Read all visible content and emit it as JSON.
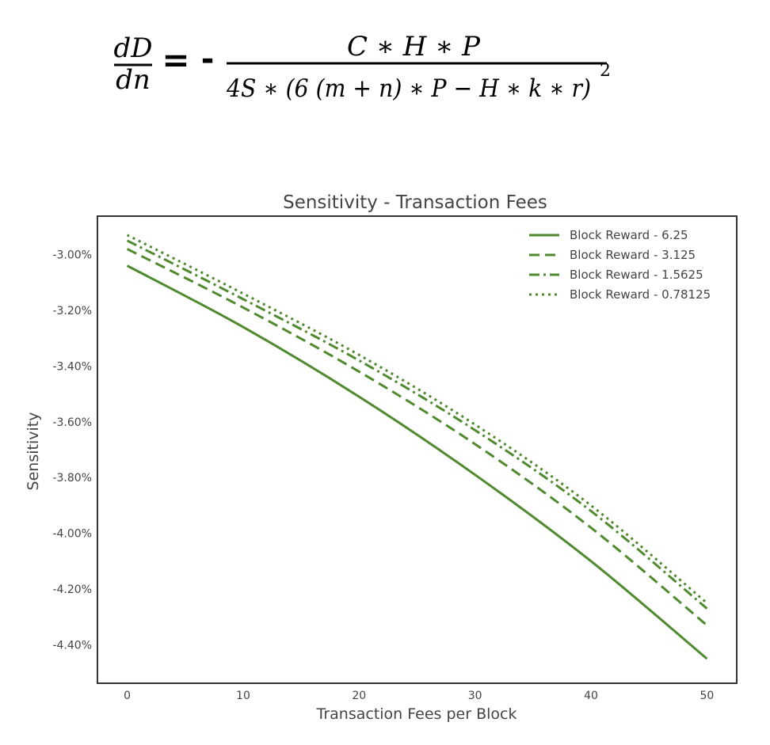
{
  "formula": {
    "lhs_num": "dD",
    "lhs_den": "dn",
    "equals": "=",
    "sign": "-",
    "rhs_num": "C ∗ H ∗ P",
    "rhs_den": "4S ∗ (6 (m + n) ∗ P − H ∗ k ∗ r)",
    "rhs_den_exp": "2"
  },
  "colors": {
    "series": "#4f8a2f",
    "axis": "#333333",
    "text": "#444444"
  },
  "chart_data": {
    "type": "line",
    "title": "Sensitivity - Transaction Fees",
    "xlabel": "Transaction Fees per Block",
    "ylabel": "Sensitivity",
    "xlim": [
      -2.5,
      52.5
    ],
    "ylim": [
      -4.535,
      -2.865
    ],
    "xticks": [
      0,
      10,
      20,
      30,
      40,
      50
    ],
    "xtick_labels": [
      "0",
      "10",
      "20",
      "30",
      "40",
      "50"
    ],
    "yticks": [
      -3.0,
      -3.2,
      -3.4,
      -3.6,
      -3.8,
      -4.0,
      -4.2,
      -4.4
    ],
    "ytick_labels": [
      "-3.00%",
      "-3.20%",
      "-3.40%",
      "-3.60%",
      "-3.80%",
      "-4.00%",
      "-4.20%",
      "-4.40%"
    ],
    "grid": false,
    "legend_position": "top-right",
    "x": [
      0,
      10,
      20,
      30,
      40,
      50
    ],
    "series": [
      {
        "name": "Block Reward - 6.25",
        "style": "solid",
        "values": [
          -3.04,
          -3.26,
          -3.51,
          -3.79,
          -4.1,
          -4.45
        ]
      },
      {
        "name": "Block Reward - 3.125",
        "style": "dashed",
        "values": [
          -2.98,
          -3.19,
          -3.42,
          -3.68,
          -3.98,
          -4.33
        ]
      },
      {
        "name": "Block Reward - 1.5625",
        "style": "dashdot",
        "values": [
          -2.95,
          -3.16,
          -3.38,
          -3.63,
          -3.92,
          -4.27
        ]
      },
      {
        "name": "Block Reward - 0.78125",
        "style": "dotted",
        "values": [
          -2.93,
          -3.14,
          -3.36,
          -3.61,
          -3.9,
          -4.25
        ]
      }
    ]
  }
}
